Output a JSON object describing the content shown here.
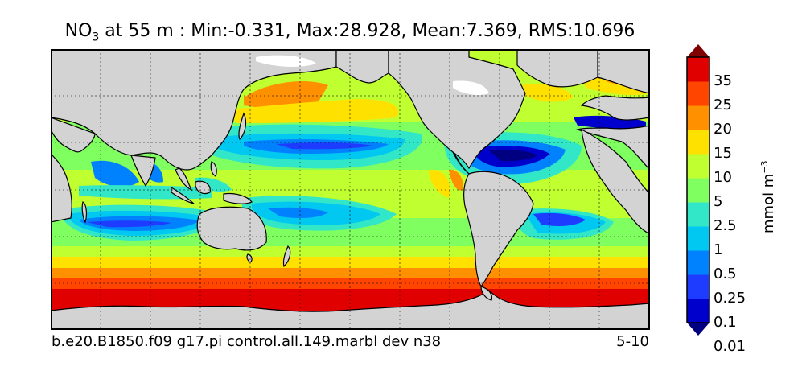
{
  "title": {
    "variable_main": "NO",
    "variable_sub": "3",
    "rest": " at 55 m : Min:-0.331, Max:28.928, Mean:7.369, RMS:10.696"
  },
  "caption": {
    "left": "b.e20.B1850.f09 g17.pi control.all.149.marbl dev n38",
    "right": "5-10"
  },
  "colorbar": {
    "label_main": "mmol m",
    "label_sup": "−3",
    "ticks": [
      "35",
      "25",
      "20",
      "15",
      "10",
      "5",
      "2.5",
      "1",
      "0.5",
      "0.25",
      "0.1",
      "0.01"
    ],
    "colors": [
      "#000080",
      "#0000cd",
      "#1e3cff",
      "#0082ff",
      "#00c8f0",
      "#32e6c8",
      "#80ff60",
      "#c0ff30",
      "#ffe100",
      "#ff9000",
      "#ff4500",
      "#e00000",
      "#800000"
    ]
  },
  "chart_data": {
    "type": "heatmap",
    "description_kind": "global ocean map with filled contours",
    "min": -0.331,
    "max": 28.928,
    "mean": 7.369,
    "rms": 10.696,
    "depth_m": 55,
    "levels": [
      0.01,
      0.1,
      0.25,
      0.5,
      1,
      2.5,
      5,
      10,
      15,
      20,
      25,
      35
    ],
    "land_color": "#d3d3d3",
    "grid": true
  }
}
